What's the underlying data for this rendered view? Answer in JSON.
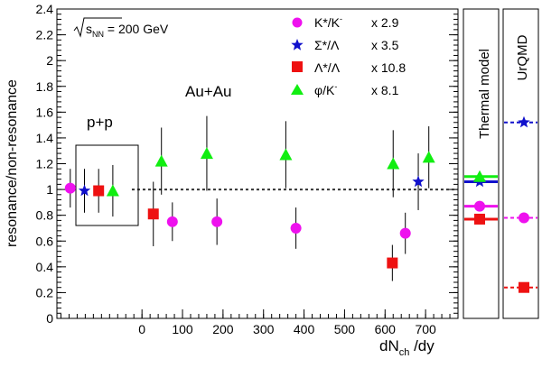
{
  "chart_data": {
    "type": "scatter",
    "ylabel": "resonance/non-resonance",
    "xlabel_main": "dN",
    "xlabel_sub": "ch",
    "xlabel_tail": " /dy",
    "energy_label_main": "s",
    "energy_label_sub": "NN",
    "energy_label_tail": " = 200 GeV",
    "annotations": {
      "pp": "p+p",
      "auau": "Au+Au"
    },
    "ylim": [
      0,
      2.4
    ],
    "xlim": [
      -210,
      780
    ],
    "yticks": [
      "0",
      "0.2",
      "0.4",
      "0.6",
      "0.8",
      "1",
      "1.2",
      "1.4",
      "1.6",
      "1.8",
      "2",
      "2.2",
      "2.4"
    ],
    "xticks": [
      "0",
      "100",
      "200",
      "300",
      "400",
      "500",
      "600",
      "700"
    ],
    "reference_line": 1.0,
    "series": [
      {
        "name": "K*/K",
        "legend_sup": "-",
        "legend_scale": "x 2.9",
        "marker": "circle",
        "color": "#ee11ee",
        "pp": {
          "x": -177,
          "y": 1.01,
          "err": 0.15
        },
        "points": [
          {
            "x": 75,
            "y": 0.75,
            "err": 0.15
          },
          {
            "x": 185,
            "y": 0.75,
            "err": 0.18
          },
          {
            "x": 380,
            "y": 0.7,
            "err": 0.16
          },
          {
            "x": 650,
            "y": 0.66,
            "err": 0.16
          }
        ],
        "thermal": 0.87,
        "urqmd": 0.78
      },
      {
        "name": "Σ*/Λ",
        "legend_scale": "x 3.5",
        "marker": "star",
        "color": "#1111cc",
        "pp": {
          "x": -142,
          "y": 0.99,
          "err": 0.17
        },
        "points": [
          {
            "x": 682,
            "y": 1.06,
            "err": 0.22
          }
        ],
        "thermal": 1.06,
        "urqmd": 1.52
      },
      {
        "name": "Λ*/Λ",
        "legend_scale": "x 10.8",
        "marker": "square",
        "color": "#ee1111",
        "pp": {
          "x": -107,
          "y": 0.99,
          "err": 0.17
        },
        "points": [
          {
            "x": 28,
            "y": 0.81,
            "err": 0.25
          },
          {
            "x": 618,
            "y": 0.43,
            "err": 0.14
          }
        ],
        "thermal": 0.77,
        "urqmd": 0.24
      },
      {
        "name": "φ/K",
        "legend_sup": "-",
        "legend_scale": "x 8.1",
        "marker": "triangle",
        "color": "#11ee11",
        "pp": {
          "x": -72,
          "y": 0.99,
          "err": 0.2
        },
        "points": [
          {
            "x": 48,
            "y": 1.22,
            "err": 0.26
          },
          {
            "x": 160,
            "y": 1.28,
            "err": 0.29
          },
          {
            "x": 355,
            "y": 1.27,
            "err": 0.26
          },
          {
            "x": 620,
            "y": 1.2,
            "err": 0.26
          },
          {
            "x": 708,
            "y": 1.25,
            "err": 0.24
          }
        ],
        "thermal": 1.1
      }
    ],
    "panels": {
      "thermal": "Thermal model",
      "urqmd": "UrQMD"
    }
  }
}
